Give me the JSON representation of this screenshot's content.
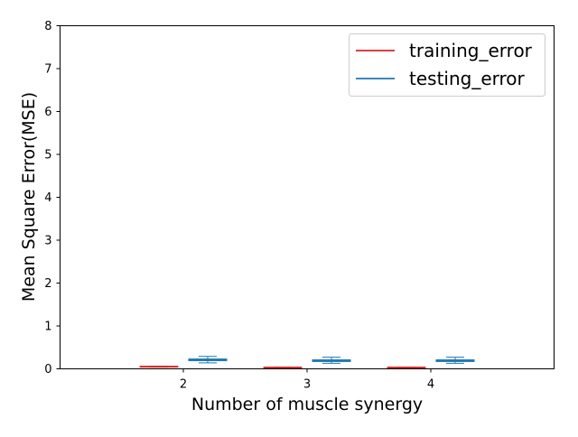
{
  "chart_data": {
    "type": "box",
    "title": "",
    "xlabel": "Number of muscle synergy",
    "ylabel": "Mean Square Error(MSE)",
    "categories": [
      "2",
      "3",
      "4"
    ],
    "ylim": [
      0,
      8
    ],
    "yticks": [
      "0",
      "1",
      "2",
      "3",
      "4",
      "5",
      "6",
      "7",
      "8"
    ],
    "grid": false,
    "legend_position": "top-right",
    "series": [
      {
        "name": "training_error",
        "color": "#d62728",
        "boxes": [
          {
            "min": 0.04,
            "q1": 0.045,
            "median": 0.05,
            "q3": 0.055,
            "max": 0.06
          },
          {
            "min": 0.02,
            "q1": 0.025,
            "median": 0.03,
            "q3": 0.035,
            "max": 0.04
          },
          {
            "min": 0.02,
            "q1": 0.025,
            "median": 0.03,
            "q3": 0.035,
            "max": 0.04
          }
        ]
      },
      {
        "name": "testing_error",
        "color": "#1f77b4",
        "boxes": [
          {
            "min": 0.14,
            "q1": 0.19,
            "median": 0.21,
            "q3": 0.23,
            "max": 0.29
          },
          {
            "min": 0.13,
            "q1": 0.17,
            "median": 0.19,
            "q3": 0.21,
            "max": 0.27
          },
          {
            "min": 0.13,
            "q1": 0.17,
            "median": 0.19,
            "q3": 0.21,
            "max": 0.27
          }
        ]
      }
    ]
  }
}
